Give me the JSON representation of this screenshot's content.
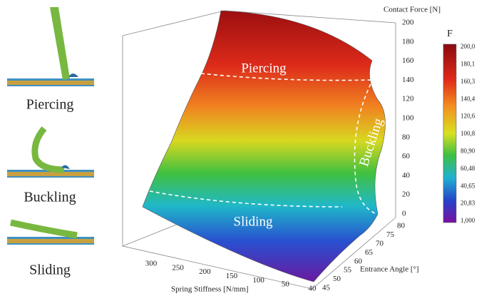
{
  "illustrations": [
    {
      "label": "Piercing"
    },
    {
      "label": "Buckling"
    },
    {
      "label": "Sliding"
    }
  ],
  "plot": {
    "regions": [
      "Piercing",
      "Buckling",
      "Sliding"
    ],
    "z_axis": {
      "title": "Contact Force [N]",
      "ticks": [
        200,
        180,
        160,
        140,
        120,
        100,
        80,
        60,
        40,
        20,
        0
      ]
    },
    "x_axis": {
      "title": "Spring Stiffness [N/mm]",
      "ticks": [
        300,
        250,
        200,
        150,
        100,
        50,
        40
      ]
    },
    "y_axis": {
      "title": "Entrance Angle [°]",
      "ticks": [
        45,
        50,
        55,
        60,
        65,
        70,
        75,
        80
      ]
    },
    "colorbar": {
      "title": "F",
      "ticks": [
        "200,0",
        "180,1",
        "160,3",
        "140,4",
        "120,6",
        "100,8",
        "80,90",
        "60,48",
        "40,65",
        "20,83",
        "1,000"
      ]
    }
  }
}
